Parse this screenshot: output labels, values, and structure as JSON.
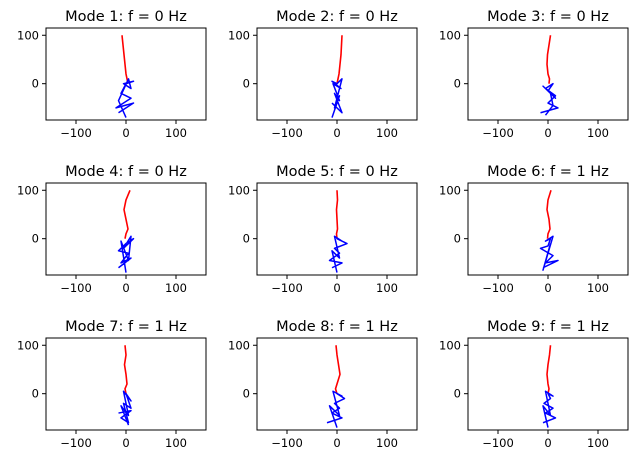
{
  "figure": {
    "background": "#ffffff"
  },
  "colors": {
    "beam": "#ff0000",
    "truss": "#0000ff",
    "axes": "#000000"
  },
  "chart_data": [
    {
      "type": "line",
      "title": "Mode 1: f = 0 Hz",
      "xlim": [
        -160,
        160
      ],
      "ylim": [
        -75,
        115
      ],
      "xticks": [
        -100,
        0,
        100
      ],
      "yticks": [
        0,
        100
      ],
      "series": [
        {
          "color": "#ff0000",
          "x": [
            -8,
            -6,
            -4,
            -2,
            0,
            2,
            4
          ],
          "y": [
            100,
            80,
            60,
            40,
            20,
            10,
            0
          ]
        },
        {
          "color": "#0000ff",
          "x": [
            -15,
            15,
            -20,
            10,
            -10,
            0,
            15,
            -5,
            10,
            5,
            -15,
            0
          ],
          "y": [
            -60,
            -40,
            -50,
            -30,
            -20,
            0,
            5,
            0,
            -10,
            10,
            -35,
            -70
          ]
        }
      ]
    },
    {
      "type": "line",
      "title": "Mode 2: f = 0 Hz",
      "xlim": [
        -160,
        160
      ],
      "ylim": [
        -75,
        115
      ],
      "xticks": [
        -100,
        0,
        100
      ],
      "yticks": [
        0,
        100
      ],
      "series": [
        {
          "color": "#ff0000",
          "x": [
            10,
            9,
            8,
            6,
            4,
            2,
            0
          ],
          "y": [
            100,
            80,
            60,
            40,
            20,
            10,
            0
          ]
        },
        {
          "color": "#0000ff",
          "x": [
            -10,
            10,
            -5,
            5,
            -8,
            8,
            -10,
            0,
            10,
            -5,
            5,
            -10
          ],
          "y": [
            -40,
            -60,
            -20,
            -35,
            0,
            -10,
            5,
            0,
            10,
            -50,
            -25,
            -70
          ]
        }
      ]
    },
    {
      "type": "line",
      "title": "Mode 3: f = 0 Hz",
      "xlim": [
        -160,
        160
      ],
      "ylim": [
        -75,
        115
      ],
      "xticks": [
        -100,
        0,
        100
      ],
      "yticks": [
        0,
        100
      ],
      "series": [
        {
          "color": "#ff0000",
          "x": [
            5,
            2,
            -1,
            -2,
            0,
            3,
            2
          ],
          "y": [
            100,
            80,
            60,
            40,
            20,
            10,
            0
          ]
        },
        {
          "color": "#0000ff",
          "x": [
            -15,
            20,
            0,
            15,
            -5,
            10,
            0,
            15,
            -10,
            5,
            10,
            -5
          ],
          "y": [
            -60,
            -50,
            -40,
            -25,
            -10,
            0,
            -15,
            -30,
            -5,
            -20,
            -45,
            -65
          ]
        }
      ]
    },
    {
      "type": "line",
      "title": "Mode 4: f = 0 Hz",
      "xlim": [
        -160,
        160
      ],
      "ylim": [
        -75,
        115
      ],
      "xticks": [
        -100,
        0,
        100
      ],
      "yticks": [
        0,
        100
      ],
      "series": [
        {
          "color": "#ff0000",
          "x": [
            8,
            0,
            -4,
            0,
            4,
            0,
            -2
          ],
          "y": [
            100,
            80,
            60,
            40,
            20,
            10,
            0
          ]
        },
        {
          "color": "#0000ff",
          "x": [
            -15,
            10,
            -10,
            5,
            -15,
            0,
            15,
            -5,
            10,
            5,
            -10,
            0
          ],
          "y": [
            -60,
            -40,
            -50,
            -30,
            -25,
            -10,
            0,
            -20,
            5,
            -45,
            -5,
            -70
          ]
        }
      ]
    },
    {
      "type": "line",
      "title": "Mode 5: f = 0 Hz",
      "xlim": [
        -160,
        160
      ],
      "ylim": [
        -75,
        115
      ],
      "xticks": [
        -100,
        0,
        100
      ],
      "yticks": [
        0,
        100
      ],
      "series": [
        {
          "color": "#ff0000",
          "x": [
            0,
            1,
            -1,
            0,
            1,
            -1,
            0
          ],
          "y": [
            100,
            80,
            60,
            40,
            20,
            10,
            0
          ]
        },
        {
          "color": "#0000ff",
          "x": [
            -10,
            10,
            -15,
            5,
            -5,
            20,
            0,
            10,
            -5,
            5,
            -10,
            0
          ],
          "y": [
            -60,
            -50,
            -45,
            -30,
            -20,
            -10,
            0,
            -5,
            5,
            -40,
            -25,
            -70
          ]
        }
      ]
    },
    {
      "type": "line",
      "title": "Mode 6: f = 1 Hz",
      "xlim": [
        -160,
        160
      ],
      "ylim": [
        -75,
        115
      ],
      "xticks": [
        -100,
        0,
        100
      ],
      "yticks": [
        0,
        100
      ],
      "series": [
        {
          "color": "#ff0000",
          "x": [
            6,
            0,
            -2,
            2,
            4,
            0,
            -1
          ],
          "y": [
            100,
            80,
            60,
            40,
            20,
            10,
            0
          ]
        },
        {
          "color": "#0000ff",
          "x": [
            -10,
            20,
            -5,
            10,
            -15,
            0,
            5,
            -5,
            10,
            0,
            -10,
            5
          ],
          "y": [
            -60,
            -45,
            -50,
            -35,
            -20,
            -15,
            0,
            -5,
            5,
            -30,
            -65,
            -10
          ]
        }
      ]
    },
    {
      "type": "line",
      "title": "Mode 7: f = 1 Hz",
      "xlim": [
        -160,
        160
      ],
      "ylim": [
        -75,
        115
      ],
      "xticks": [
        -100,
        0,
        100
      ],
      "yticks": [
        0,
        100
      ],
      "series": [
        {
          "color": "#ff0000",
          "x": [
            -2,
            0,
            -3,
            0,
            2,
            -2,
            0
          ],
          "y": [
            100,
            80,
            60,
            40,
            20,
            10,
            0
          ]
        },
        {
          "color": "#0000ff",
          "x": [
            -15,
            10,
            -10,
            5,
            -5,
            10,
            0,
            10,
            -5,
            5,
            -10,
            5
          ],
          "y": [
            -40,
            -35,
            -50,
            -60,
            -20,
            -30,
            0,
            -15,
            5,
            -45,
            -25,
            -65
          ]
        }
      ]
    },
    {
      "type": "line",
      "title": "Mode 8: f = 1 Hz",
      "xlim": [
        -160,
        160
      ],
      "ylim": [
        -75,
        115
      ],
      "xticks": [
        -100,
        0,
        100
      ],
      "yticks": [
        0,
        100
      ],
      "series": [
        {
          "color": "#ff0000",
          "x": [
            -2,
            0,
            3,
            6,
            0,
            -3,
            0
          ],
          "y": [
            100,
            80,
            60,
            40,
            20,
            10,
            0
          ]
        },
        {
          "color": "#0000ff",
          "x": [
            -20,
            10,
            -10,
            5,
            -5,
            15,
            0,
            10,
            -8,
            5,
            -15,
            0
          ],
          "y": [
            -60,
            -50,
            -40,
            -30,
            -20,
            -10,
            0,
            -5,
            5,
            -45,
            -25,
            -70
          ]
        }
      ]
    },
    {
      "type": "line",
      "title": "Mode 9: f = 1 Hz",
      "xlim": [
        -160,
        160
      ],
      "ylim": [
        -75,
        115
      ],
      "xticks": [
        -100,
        0,
        100
      ],
      "yticks": [
        0,
        100
      ],
      "series": [
        {
          "color": "#ff0000",
          "x": [
            5,
            3,
            0,
            -2,
            0,
            2,
            0
          ],
          "y": [
            100,
            80,
            60,
            40,
            20,
            10,
            0
          ]
        },
        {
          "color": "#0000ff",
          "x": [
            -10,
            15,
            -5,
            10,
            -8,
            5,
            0,
            10,
            -5,
            5,
            -10,
            0
          ],
          "y": [
            -60,
            -50,
            -40,
            -30,
            -20,
            -10,
            0,
            -5,
            5,
            -45,
            -25,
            -70
          ]
        }
      ]
    }
  ]
}
